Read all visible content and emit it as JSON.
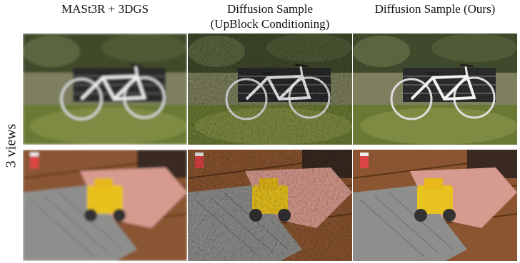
{
  "figure": {
    "columns": [
      {
        "lines": [
          "MASt3R + 3DGS"
        ]
      },
      {
        "lines": [
          "Diffusion Sample",
          "(UpBlock Conditioning)"
        ]
      },
      {
        "lines": [
          "Diffusion Sample (Ours)"
        ]
      }
    ],
    "row_label": "3 views"
  }
}
